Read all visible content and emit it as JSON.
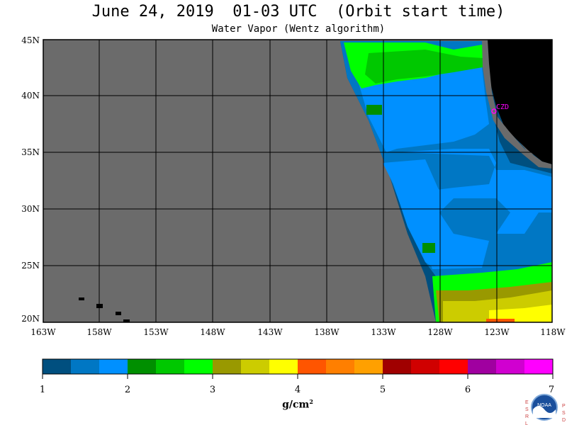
{
  "title": "June 24, 2019  01-03 UTC  (Orbit start time)",
  "subtitle": "Water Vapor (Wentz algorithm)",
  "lat_labels": [
    "45N",
    "40N",
    "35N",
    "30N",
    "25N",
    "20N"
  ],
  "lon_labels": [
    "163W",
    "158W",
    "153W",
    "148W",
    "143W",
    "138W",
    "133W",
    "128W",
    "123W",
    "118W"
  ],
  "station": "CZD",
  "colorbar": {
    "tick_labels": [
      "1",
      "2",
      "3",
      "4",
      "5",
      "6",
      "7"
    ],
    "colors": [
      "#004f7f",
      "#0077c4",
      "#0090ff",
      "#008f00",
      "#00c800",
      "#00ff00",
      "#999900",
      "#cccc00",
      "#ffff00",
      "#ff5500",
      "#ff7f00",
      "#ffa000",
      "#a00000",
      "#d00000",
      "#ff0000",
      "#a000a0",
      "#d000d0",
      "#ff00ff"
    ]
  },
  "unit_main": "g/cm",
  "unit_sup": "2",
  "logo": {
    "left_letters": [
      "E",
      "S",
      "R",
      "L"
    ],
    "right_letters": [
      "P",
      "S",
      "D"
    ],
    "text": "NOAA"
  }
}
